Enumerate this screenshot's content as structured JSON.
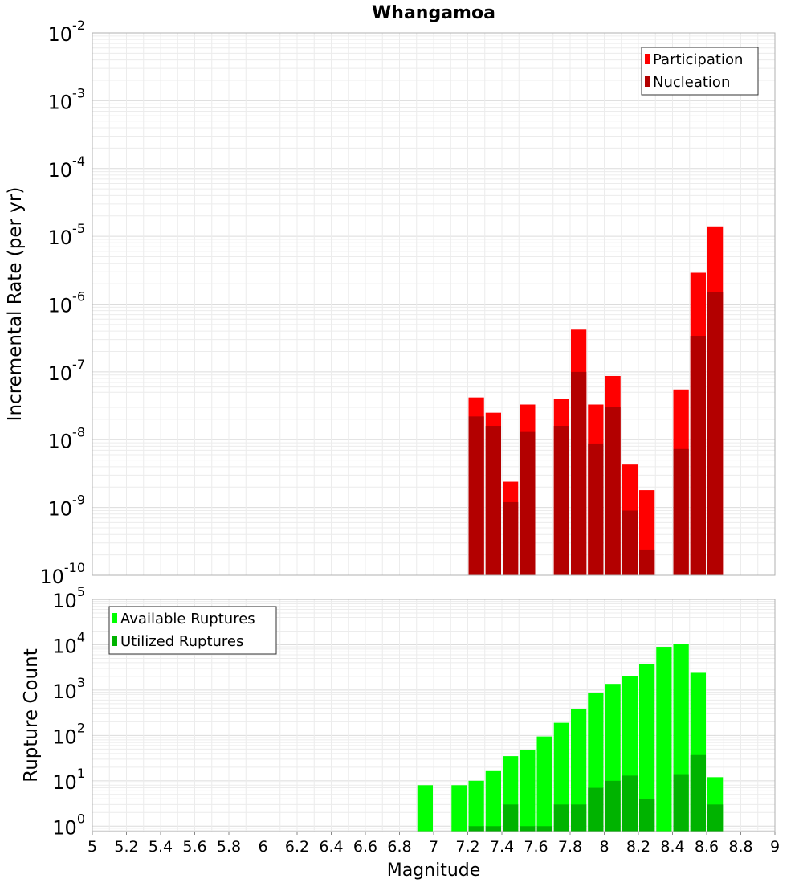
{
  "chart_data": [
    {
      "type": "bar",
      "title": "Whangamoa",
      "ylabel": "Incremental Rate (per yr)",
      "xlabel": "",
      "y_scale": "log",
      "ylim": [
        1e-10,
        0.01
      ],
      "xlim": [
        5,
        9
      ],
      "bar_width": 0.1,
      "grid": true,
      "legend_position": "top-right",
      "series": [
        {
          "name": "Participation",
          "color": "#ff0000",
          "x": [
            7.25,
            7.35,
            7.45,
            7.55,
            7.75,
            7.85,
            7.95,
            8.05,
            8.15,
            8.25,
            8.45,
            8.55,
            8.65
          ],
          "values": [
            4.2e-08,
            2.5e-08,
            2.4e-09,
            3.3e-08,
            4e-08,
            4.2e-07,
            3.3e-08,
            8.7e-08,
            4.3e-09,
            1.8e-09,
            5.5e-08,
            2.9e-06,
            1.4e-05
          ]
        },
        {
          "name": "Nucleation",
          "color": "#b30000",
          "x": [
            7.25,
            7.35,
            7.45,
            7.55,
            7.75,
            7.85,
            7.95,
            8.05,
            8.15,
            8.25,
            8.45,
            8.55,
            8.65
          ],
          "values": [
            2.2e-08,
            1.6e-08,
            1.2e-09,
            1.3e-08,
            1.6e-08,
            1e-07,
            8.8e-09,
            3e-08,
            9e-10,
            2.4e-10,
            7.3e-09,
            3.4e-07,
            1.5e-06
          ]
        }
      ]
    },
    {
      "type": "bar",
      "title": "",
      "ylabel": "Rupture Count",
      "xlabel": "Magnitude",
      "y_scale": "log",
      "ylim": [
        0.76,
        100000.0
      ],
      "xlim": [
        5,
        9
      ],
      "x_ticks": [
        "5",
        "5.2",
        "5.4",
        "5.6",
        "5.8",
        "6",
        "6.2",
        "6.4",
        "6.6",
        "6.8",
        "7",
        "7.2",
        "7.4",
        "7.6",
        "7.8",
        "8",
        "8.2",
        "8.4",
        "8.6",
        "8.8",
        "9"
      ],
      "bar_width": 0.1,
      "grid": true,
      "legend_position": "top-left",
      "series": [
        {
          "name": "Available Ruptures",
          "color": "#00ff00",
          "x": [
            6.95,
            7.15,
            7.25,
            7.35,
            7.45,
            7.55,
            7.65,
            7.75,
            7.85,
            7.95,
            8.05,
            8.15,
            8.25,
            8.35,
            8.45,
            8.55,
            8.65
          ],
          "values": [
            8,
            8,
            10,
            17,
            35,
            47,
            95,
            190,
            380,
            850,
            1370,
            2000,
            3700,
            9000,
            10500,
            2400,
            12
          ]
        },
        {
          "name": "Utilized Ruptures",
          "color": "#00b300",
          "x": [
            7.25,
            7.35,
            7.45,
            7.55,
            7.65,
            7.75,
            7.85,
            7.95,
            8.05,
            8.15,
            8.25,
            8.45,
            8.55,
            8.65
          ],
          "values": [
            1,
            1,
            3,
            1,
            1,
            3,
            3,
            7,
            10,
            13,
            4,
            14,
            37,
            3
          ]
        }
      ]
    }
  ]
}
